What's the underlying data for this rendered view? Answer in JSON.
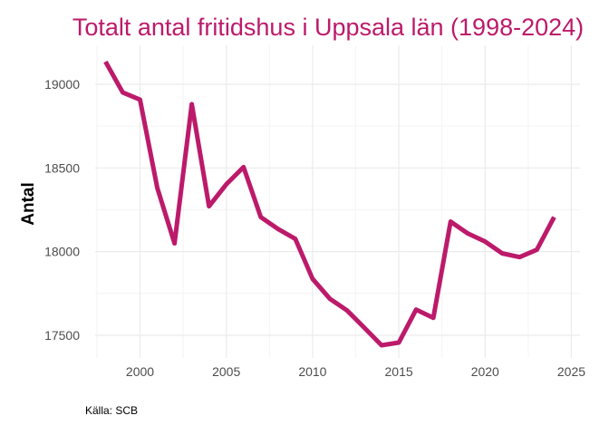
{
  "chart_data": {
    "type": "line",
    "title": "Totalt antal fritidshus i Uppsala län (1998-2024)",
    "xlabel": "",
    "ylabel": "Antal",
    "caption": "Källa: SCB",
    "x": [
      1998,
      1999,
      2000,
      2001,
      2002,
      2003,
      2004,
      2005,
      2006,
      2007,
      2008,
      2009,
      2010,
      2011,
      2012,
      2013,
      2014,
      2015,
      2016,
      2017,
      2018,
      2019,
      2020,
      2021,
      2022,
      2023,
      2024
    ],
    "series": [
      {
        "name": "Antal",
        "color": "#BC1A6A",
        "values": [
          19135,
          18951,
          18908,
          18381,
          18049,
          18881,
          18271,
          18402,
          18505,
          18206,
          18135,
          18076,
          17837,
          17718,
          17648,
          17545,
          17440,
          17456,
          17653,
          17604,
          18179,
          18108,
          18060,
          17989,
          17967,
          18011,
          18206
        ]
      }
    ],
    "xlim": [
      1997.4,
      2025.5
    ],
    "ylim": [
      17364,
      19233
    ],
    "xticks": [
      2000,
      2005,
      2010,
      2015,
      2020,
      2025
    ],
    "yticks": [
      17500,
      18000,
      18500,
      19000
    ],
    "xtick_labels": [
      "2000",
      "2005",
      "2010",
      "2015",
      "2020",
      "2025"
    ],
    "ytick_labels": [
      "17500",
      "18000",
      "18500",
      "19000"
    ],
    "grid": true,
    "legend": "none"
  }
}
